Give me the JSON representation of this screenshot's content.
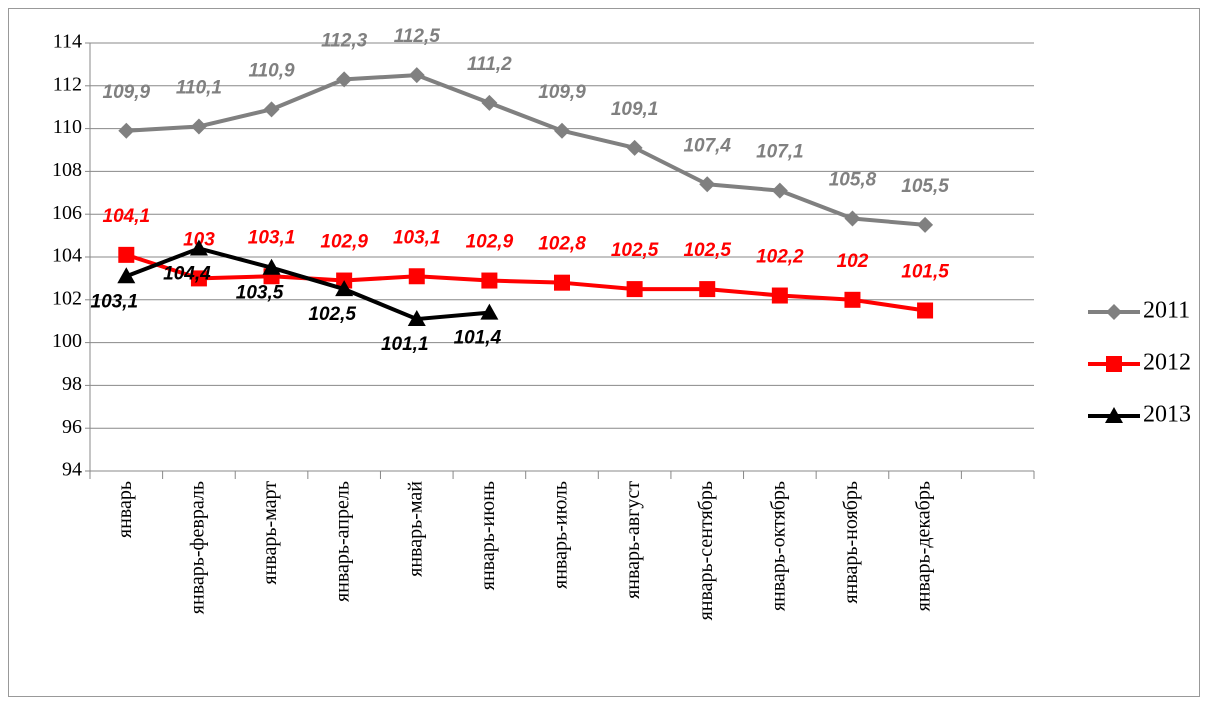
{
  "chart_data": {
    "type": "line",
    "categories": [
      "январь",
      "январь-февраль",
      "январь-март",
      "январь-апрель",
      "январь-май",
      "январь-июнь",
      "январь-июль",
      "январь-август",
      "январь-сентябрь",
      "январь-октябрь",
      "январь-ноябрь",
      "январь-декабрь",
      null
    ],
    "series": [
      {
        "name": "2011",
        "color": "#808080",
        "marker": "diamond",
        "values": [
          109.9,
          110.1,
          110.9,
          112.3,
          112.5,
          111.2,
          109.9,
          109.1,
          107.4,
          107.1,
          105.8,
          105.5,
          null
        ],
        "value_labels": [
          "109,9",
          "110,1",
          "110,9",
          "112,3",
          "112,5",
          "111,2",
          "109,9",
          "109,1",
          "107,4",
          "107,1",
          "105,8",
          "105,5",
          null
        ]
      },
      {
        "name": "2012",
        "color": "#ff0000",
        "marker": "square",
        "values": [
          104.1,
          103,
          103.1,
          102.9,
          103.1,
          102.9,
          102.8,
          102.5,
          102.5,
          102.2,
          102,
          101.5,
          null
        ],
        "value_labels": [
          "104,1",
          "103",
          "103,1",
          "102,9",
          "103,1",
          "102,9",
          "102,8",
          "102,5",
          "102,5",
          "102,2",
          "102",
          "101,5",
          null
        ]
      },
      {
        "name": "2013",
        "color": "#000000",
        "marker": "triangle",
        "values": [
          103.1,
          104.4,
          103.5,
          102.5,
          101.1,
          101.4,
          null,
          null,
          null,
          null,
          null,
          null,
          null
        ],
        "value_labels": [
          "103,1",
          "104,4",
          "103,5",
          "102,5",
          "101,1",
          "101,4",
          null,
          null,
          null,
          null,
          null,
          null,
          null
        ]
      }
    ],
    "ylim": [
      94,
      114
    ],
    "yticks": [
      94,
      96,
      98,
      100,
      102,
      104,
      106,
      108,
      110,
      112,
      114
    ],
    "grid": true,
    "legend": "right"
  }
}
